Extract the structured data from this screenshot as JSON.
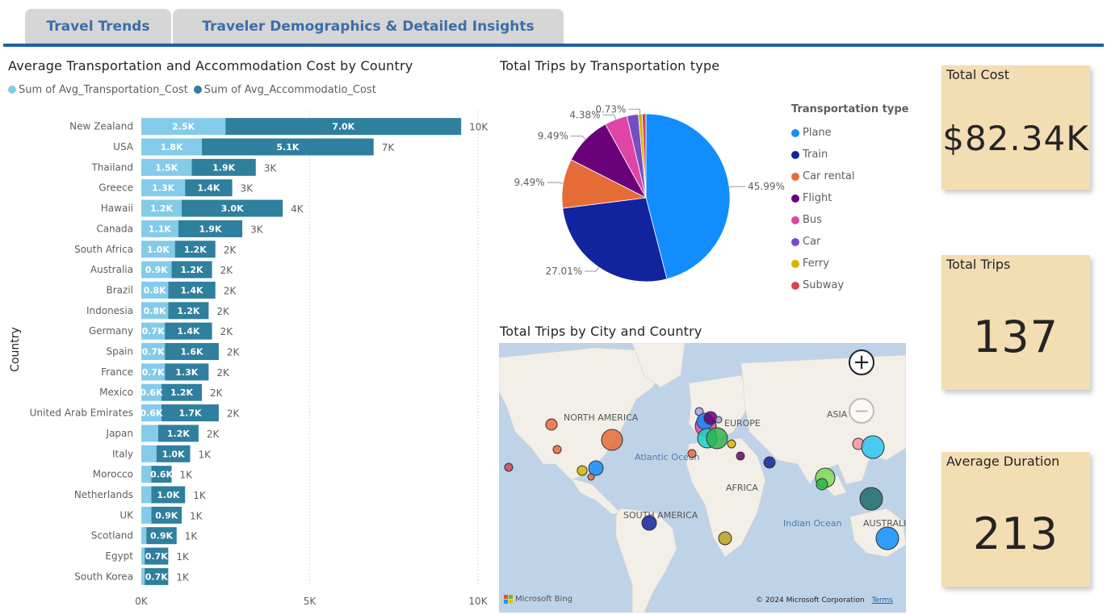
{
  "tabs": [
    {
      "label": "Travel Trends"
    },
    {
      "label": "Traveler Demographics & Detailed Insights"
    }
  ],
  "colors": {
    "transport": "#84cbea",
    "accommodation": "#2f7f9e",
    "card_bg": "#f3deb4",
    "tab_rule": "#1f5fa8"
  },
  "bar_chart": {
    "title": "Average Transportation and Accommodation Cost by Country",
    "legend": [
      "Sum of Avg_Transportation_Cost",
      "Sum of Avg_Accommodatio_Cost"
    ],
    "ylabel": "Country",
    "x_ticks": [
      "0K",
      "5K",
      "10K"
    ]
  },
  "pie_chart": {
    "title": "Total Trips by Transportation type",
    "legend_title": "Transportation type",
    "labels_shown": [
      "45.99%",
      "27.01%",
      "9.49%",
      "9.49%",
      "4.38%",
      "0.73%"
    ]
  },
  "map": {
    "title": "Total Trips by City and Country",
    "labels": {
      "north_america": "NORTH AMERICA",
      "europe": "EUROPE",
      "asia": "ASIA",
      "atlantic": "Atlantic Ocean",
      "africa": "AFRICA",
      "south_america": "SOUTH AMERICA",
      "indian": "Indian Ocean",
      "australia": "AUSTRALIA"
    },
    "bing": "Microsoft Bing",
    "copyright": "© 2024 Microsoft Corporation",
    "terms": "Terms",
    "zoom_in": "+",
    "zoom_out": "−"
  },
  "cards": {
    "total_cost": {
      "label": "Total Cost",
      "value": "$82.34K"
    },
    "total_trips": {
      "label": "Total Trips",
      "value": "137"
    },
    "avg_duration": {
      "label": "Average Duration",
      "value": "213"
    }
  },
  "chart_data": [
    {
      "type": "bar",
      "orientation": "horizontal-stacked",
      "title": "Average Transportation and Accommodation Cost by Country",
      "ylabel": "Country",
      "xlabel": "",
      "xlim": [
        0,
        10000
      ],
      "x_ticks": [
        "0K",
        "5K",
        "10K"
      ],
      "categories": [
        "New Zealand",
        "USA",
        "Thailand",
        "Greece",
        "Hawaii",
        "Canada",
        "South Africa",
        "Australia",
        "Brazil",
        "Indonesia",
        "Germany",
        "Spain",
        "France",
        "Mexico",
        "United Arab Emirates",
        "Japan",
        "Italy",
        "Morocco",
        "Netherlands",
        "UK",
        "Scotland",
        "Egypt",
        "South Korea"
      ],
      "series": [
        {
          "name": "Sum of Avg_Transportation_Cost",
          "labels": [
            "2.5K",
            "1.8K",
            "1.5K",
            "1.3K",
            "1.2K",
            "1.1K",
            "1.0K",
            "0.9K",
            "0.8K",
            "0.8K",
            "0.7K",
            "0.7K",
            "0.7K",
            "0.6K",
            "0.6K",
            "",
            "",
            "",
            "",
            "",
            "",
            "",
            ""
          ],
          "values": [
            2500,
            1800,
            1500,
            1300,
            1200,
            1100,
            1000,
            900,
            800,
            800,
            700,
            700,
            700,
            600,
            600,
            500,
            450,
            300,
            300,
            300,
            150,
            100,
            100
          ]
        },
        {
          "name": "Sum of Avg_Accommodatio_Cost",
          "labels": [
            "7.0K",
            "5.1K",
            "1.9K",
            "1.4K",
            "3.0K",
            "1.9K",
            "1.2K",
            "1.2K",
            "1.4K",
            "1.2K",
            "1.4K",
            "1.6K",
            "1.3K",
            "1.2K",
            "1.7K",
            "1.2K",
            "1.0K",
            "0.6K",
            "1.0K",
            "0.9K",
            "0.9K",
            "0.7K",
            "0.7K"
          ],
          "values": [
            7000,
            5100,
            1900,
            1400,
            3000,
            1900,
            1200,
            1200,
            1400,
            1200,
            1400,
            1600,
            1300,
            1200,
            1700,
            1200,
            1000,
            600,
            1000,
            900,
            900,
            700,
            700
          ]
        }
      ],
      "totals": [
        "10K",
        "7K",
        "3K",
        "3K",
        "4K",
        "3K",
        "2K",
        "2K",
        "2K",
        "2K",
        "2K",
        "2K",
        "2K",
        "2K",
        "2K",
        "2K",
        "1K",
        "1K",
        "1K",
        "1K",
        "1K",
        "1K",
        "1K"
      ],
      "legend_position": "top-left",
      "grid": true
    },
    {
      "type": "pie",
      "title": "Total Trips by Transportation type",
      "legend_title": "Transportation type",
      "labels": [
        "Plane",
        "Train",
        "Car rental",
        "Flight",
        "Bus",
        "Car",
        "Ferry",
        "Subway"
      ],
      "values": [
        45.99,
        27.01,
        9.49,
        9.49,
        4.38,
        2.19,
        0.73,
        0.73
      ],
      "value_labels": [
        "45.99%",
        "27.01%",
        "9.49%",
        "9.49%",
        "4.38%",
        "",
        "0.73%",
        ""
      ],
      "colors": [
        "#118dff",
        "#12239e",
        "#e66c37",
        "#6b007b",
        "#e044a7",
        "#744ec2",
        "#d9b300",
        "#d64550"
      ],
      "legend_position": "right"
    }
  ]
}
